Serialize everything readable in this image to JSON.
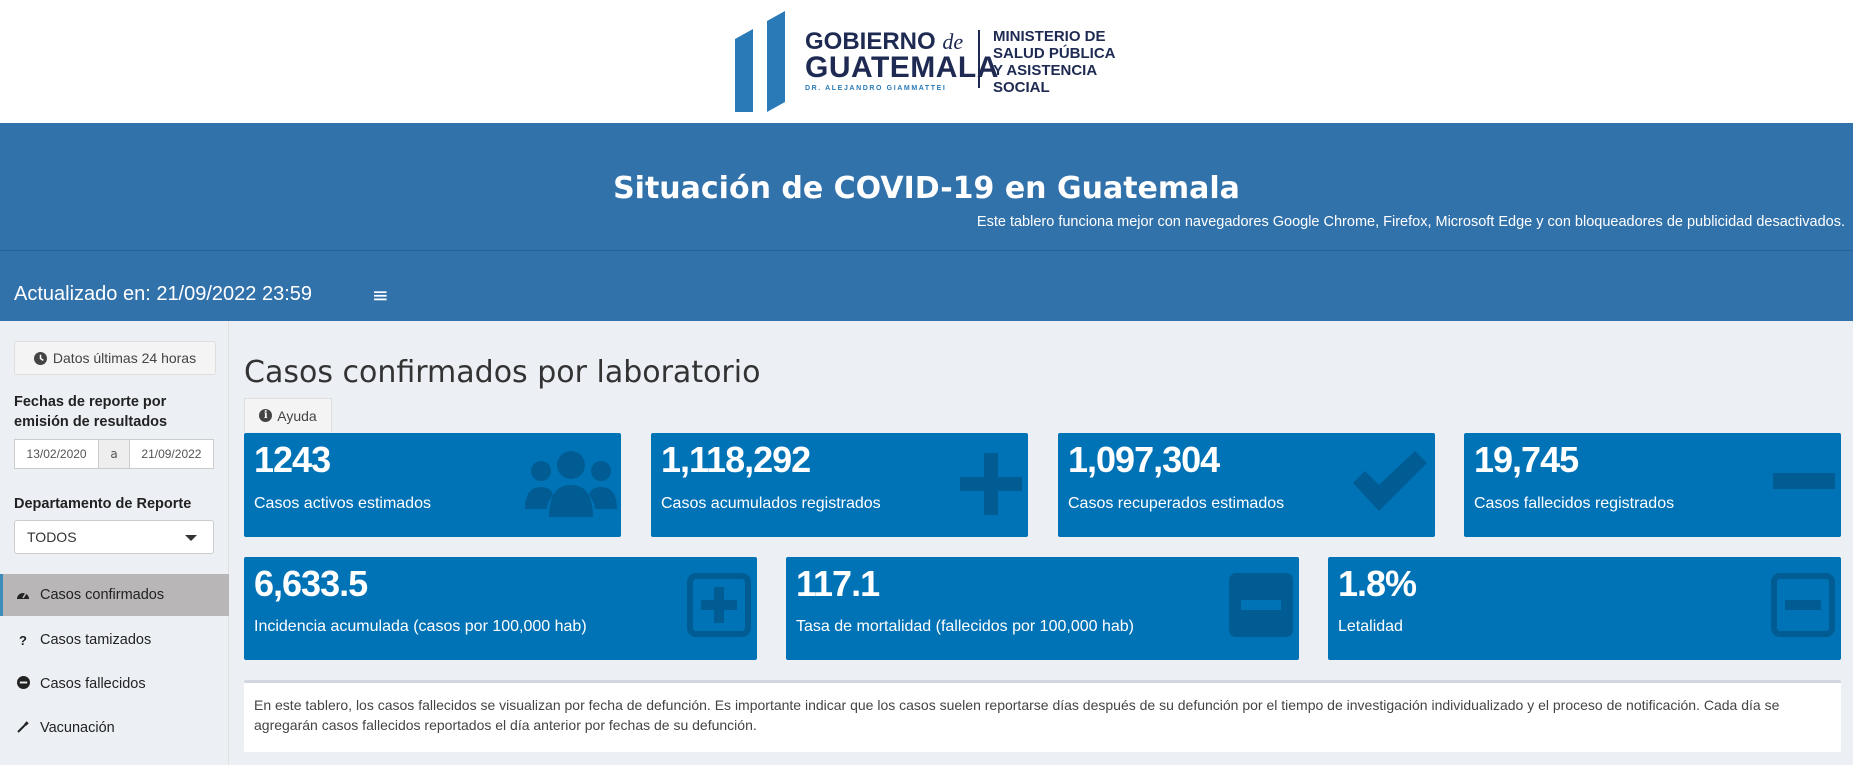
{
  "logo": {
    "gobierno": "GOBIERNO",
    "de": "de",
    "guatemala": "GUATEMALA",
    "president": "DR. ALEJANDRO GIAMMATTEI",
    "ministerio_l1": "MINISTERIO DE",
    "ministerio_l2": "SALUD PÚBLICA",
    "ministerio_l3": "Y ASISTENCIA",
    "ministerio_l4": "SOCIAL"
  },
  "header": {
    "title": "Situación de COVID-19 en Guatemala",
    "subtitle": "Este tablero funciona mejor con navegadores Google Chrome, Firefox, Microsoft Edge y con bloqueadores de publicidad desactivados."
  },
  "navbar": {
    "updated": "Actualizado en: 21/09/2022 23:59",
    "menu_glyph": "≡"
  },
  "sidebar": {
    "btn_24h": "Datos últimas 24 horas",
    "fechas_label": "Fechas de reporte por emisión de resultados",
    "date_from": "13/02/2020",
    "date_sep": "a",
    "date_to": "21/09/2022",
    "depto_label": "Departamento de Reporte",
    "depto_value": "TODOS",
    "menu": [
      {
        "label": "Casos confirmados",
        "icon": "dashboard-icon"
      },
      {
        "label": "Casos tamizados",
        "icon": "question-icon"
      },
      {
        "label": "Casos fallecidos",
        "icon": "minus-circle-icon"
      },
      {
        "label": "Vacunación",
        "icon": "syringe-icon"
      }
    ]
  },
  "main": {
    "title": "Casos confirmados por laboratorio",
    "help": "Ayuda",
    "boxes_row1": [
      {
        "value": "1243",
        "caption": "Casos activos estimados",
        "icon": "users-icon"
      },
      {
        "value": "1,118,292",
        "caption": "Casos acumulados registrados",
        "icon": "plus-icon"
      },
      {
        "value": "1,097,304",
        "caption": "Casos recuperados estimados",
        "icon": "check-icon"
      },
      {
        "value": "19,745",
        "caption": "Casos fallecidos registrados",
        "icon": "minus-icon"
      }
    ],
    "boxes_row2": [
      {
        "value": "6,633.5",
        "caption": "Incidencia acumulada (casos por 100,000 hab)",
        "icon": "plus-square-icon"
      },
      {
        "value": "117.1",
        "caption": "Tasa de mortalidad (fallecidos por 100,000 hab)",
        "icon": "minus-square-icon"
      },
      {
        "value": "1.8%",
        "caption": "Letalidad",
        "icon": "minus-square-outline-icon"
      }
    ],
    "note": "En este tablero, los casos fallecidos se visualizan por fecha de defunción. Es importante indicar que los casos suelen reportarse días después de su defunción por el tiempo de investigación individualizado y el proceso de notificación. Cada día se agregarán casos fallecidos reportados el día anterior por fechas de su defunción."
  },
  "colors": {
    "header_blue": "#3272ab",
    "box_blue": "#0073b7",
    "sidebar_active": "#b8b6b6",
    "background": "#ecf0f5"
  }
}
